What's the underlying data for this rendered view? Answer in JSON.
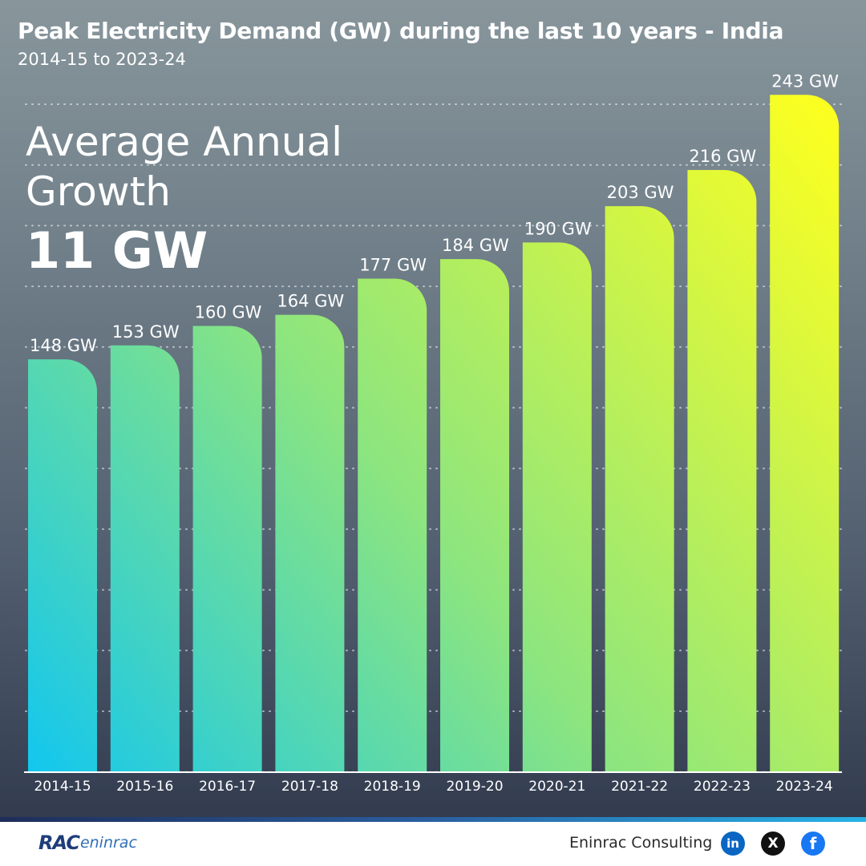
{
  "title": "Peak Electricity Demand (GW) during the last 10 years - India",
  "subtitle": "2014-15 to 2023-24",
  "growth": {
    "label": "Average Annual Growth",
    "value": "11 GW"
  },
  "chart_data": {
    "type": "bar",
    "title": "Peak Electricity Demand (GW) during the last 10 years - India",
    "subtitle": "2014-15 to 2023-24",
    "categories": [
      "2014-15",
      "2015-16",
      "2016-17",
      "2017-18",
      "2018-19",
      "2019-20",
      "2020-21",
      "2021-22",
      "2022-23",
      "2023-24"
    ],
    "values": [
      148,
      153,
      160,
      164,
      177,
      184,
      190,
      203,
      216,
      243
    ],
    "data_labels": [
      "148 GW",
      "153 GW",
      "160 GW",
      "164 GW",
      "177 GW",
      "184 GW",
      "190 GW",
      "203 GW",
      "216 GW",
      "243 GW"
    ],
    "unit": "GW",
    "ylim": [
      0,
      250
    ],
    "grid": true,
    "colors": {
      "start": "#13c7ee",
      "mid": "#8ce57f",
      "end": "#fbff21"
    }
  },
  "footer": {
    "logo_mark": "RAC",
    "logo_text": "eninrac",
    "company": "Eninrac Consulting",
    "social": [
      {
        "name": "linkedin-icon",
        "glyph": "in"
      },
      {
        "name": "x-icon",
        "glyph": "X"
      },
      {
        "name": "facebook-icon",
        "glyph": "f"
      }
    ]
  }
}
